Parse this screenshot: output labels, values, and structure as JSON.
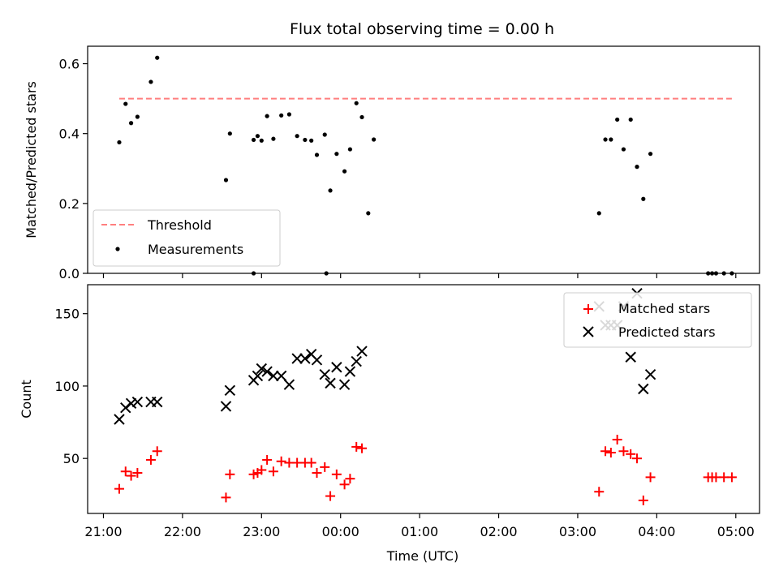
{
  "figure": {
    "title": "Flux total observing time = 0.00 h",
    "xlabel": "Time (UTC)"
  },
  "colors": {
    "threshold": "#ff7f7f",
    "measurements": "#000000",
    "matched": "#ff0000",
    "predicted": "#000000"
  },
  "chart_data": [
    {
      "type": "scatter",
      "panel": "top",
      "ylabel": "Matched/Predicted stars",
      "xlim": [
        -0.2,
        8.3
      ],
      "ylim": [
        0,
        0.65
      ],
      "y_ticks": [
        0.0,
        0.2,
        0.4,
        0.6
      ],
      "y_tick_labels": [
        "0.0",
        "0.2",
        "0.4",
        "0.6"
      ],
      "legend_position": "lower-left",
      "series": [
        {
          "name": "Threshold",
          "kind": "dashed-line",
          "x": [
            0.2,
            7.95
          ],
          "y": [
            0.5,
            0.5
          ]
        },
        {
          "name": "Measurements",
          "kind": "points",
          "x": [
            0.2,
            0.28,
            0.35,
            0.43,
            0.6,
            0.68,
            1.55,
            1.6,
            1.9,
            1.95,
            2.0,
            2.07,
            2.15,
            2.25,
            2.35,
            2.45,
            2.55,
            2.63,
            2.7,
            2.8,
            2.87,
            2.95,
            3.05,
            3.12,
            3.2,
            3.27,
            3.35,
            3.42,
            6.27,
            6.35,
            6.42,
            6.5,
            6.58,
            6.67,
            6.75,
            6.83,
            6.92,
            1.9,
            2.82,
            7.65,
            7.7,
            7.75,
            7.85,
            7.95
          ],
          "y": [
            0.375,
            0.485,
            0.43,
            0.448,
            0.548,
            0.617,
            0.267,
            0.4,
            0.382,
            0.393,
            0.38,
            0.45,
            0.385,
            0.452,
            0.455,
            0.393,
            0.382,
            0.38,
            0.339,
            0.397,
            0.237,
            0.342,
            0.292,
            0.355,
            0.487,
            0.447,
            0.172,
            0.383,
            0.172,
            0.383,
            0.383,
            0.44,
            0.355,
            0.44,
            0.305,
            0.213,
            0.342,
            0.0,
            0.0,
            0.0,
            0.0,
            0.0,
            0.0,
            0.0
          ]
        }
      ]
    },
    {
      "type": "scatter",
      "panel": "bottom",
      "ylabel": "Count",
      "xlim": [
        -0.2,
        8.3
      ],
      "ylim": [
        12,
        170
      ],
      "y_ticks": [
        50,
        100,
        150
      ],
      "y_tick_labels": [
        "50",
        "100",
        "150"
      ],
      "x_ticks": [
        0,
        1,
        2,
        3,
        4,
        5,
        6,
        7,
        8
      ],
      "x_tick_labels": [
        "21:00",
        "22:00",
        "23:00",
        "00:00",
        "01:00",
        "02:00",
        "03:00",
        "04:00",
        "05:00"
      ],
      "legend_position": "top-right",
      "series": [
        {
          "name": "Matched stars",
          "kind": "plus",
          "x": [
            0.2,
            0.28,
            0.35,
            0.43,
            0.6,
            0.68,
            1.55,
            1.6,
            1.9,
            1.95,
            2.0,
            2.07,
            2.15,
            2.25,
            2.35,
            2.45,
            2.55,
            2.63,
            2.7,
            2.8,
            2.87,
            2.95,
            3.05,
            3.12,
            3.2,
            3.27,
            6.27,
            6.35,
            6.42,
            6.5,
            6.58,
            6.67,
            6.75,
            6.83,
            6.92,
            7.65,
            7.7,
            7.75,
            7.85,
            7.95
          ],
          "y": [
            29,
            41,
            38,
            40,
            49,
            55,
            23,
            39,
            39,
            40,
            42,
            49,
            41,
            48,
            47,
            47,
            47,
            47,
            40,
            44,
            24,
            39,
            32,
            36,
            58,
            57,
            27,
            55,
            54,
            63,
            55,
            53,
            50,
            21,
            37,
            37,
            37,
            37,
            37,
            37
          ]
        },
        {
          "name": "Predicted stars",
          "kind": "cross",
          "x": [
            0.2,
            0.28,
            0.35,
            0.43,
            0.6,
            0.68,
            1.55,
            1.6,
            1.9,
            1.95,
            2.0,
            2.07,
            2.15,
            2.25,
            2.35,
            2.45,
            2.55,
            2.63,
            2.7,
            2.8,
            2.87,
            2.95,
            3.05,
            3.12,
            3.2,
            3.27,
            6.27,
            6.35,
            6.42,
            6.5,
            6.58,
            6.67,
            6.75,
            6.83,
            6.92
          ],
          "y": [
            77,
            85,
            88,
            89,
            89,
            89,
            86,
            97,
            104,
            107,
            112,
            110,
            107,
            107,
            101,
            119,
            119,
            122,
            118,
            108,
            102,
            113,
            101,
            110,
            117,
            124,
            155,
            142,
            142,
            142,
            155,
            120,
            164,
            98,
            108
          ]
        }
      ]
    }
  ]
}
